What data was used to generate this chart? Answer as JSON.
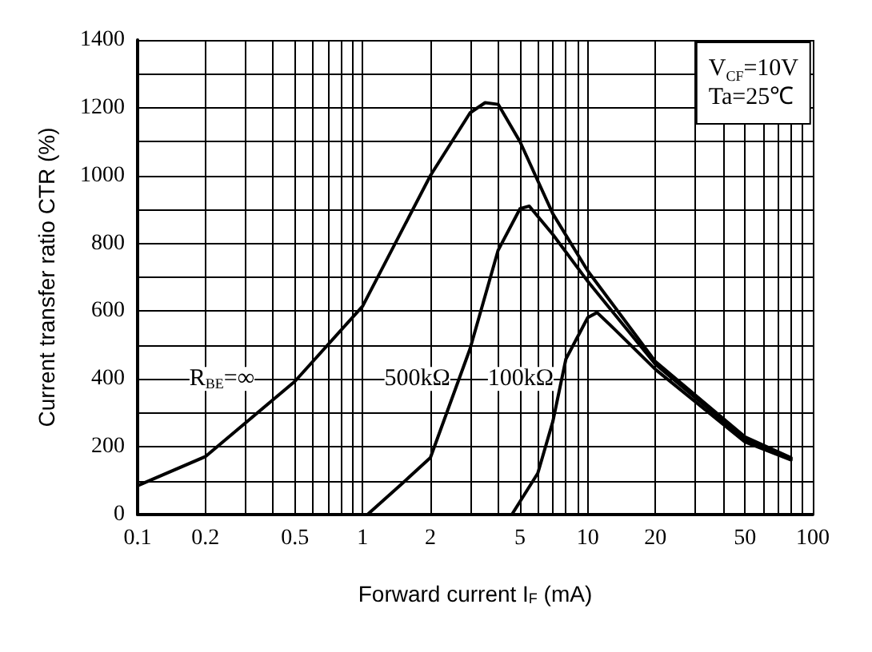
{
  "chart_data": {
    "type": "line",
    "xlabel": "Forward current I$_{F}$ (mA)",
    "ylabel": "Current transfer ratio CTR (%)",
    "annotations": [
      "V$_{CF}$=10V",
      "Ta=25℃"
    ],
    "series": [
      {
        "name": "R$_{BE}$=∞",
        "color": "#000000",
        "x": [
          0.1,
          0.2,
          0.5,
          1,
          2,
          3,
          3.5,
          4,
          5,
          7,
          10,
          20,
          50,
          80
        ],
        "values": [
          85,
          171,
          393,
          615,
          1000,
          1185,
          1215,
          1210,
          1100,
          887,
          719,
          451,
          229,
          168
        ]
      },
      {
        "name": "500kΩ",
        "color": "#000000",
        "x": [
          1.05,
          1.5,
          2,
          3,
          4,
          5,
          5.5,
          7,
          10,
          20,
          50,
          80
        ],
        "values": [
          0,
          92,
          168,
          489,
          780,
          902,
          910,
          826,
          688,
          443,
          222,
          165
        ]
      },
      {
        "name": "100kΩ",
        "color": "#000000",
        "x": [
          4.6,
          6,
          7,
          8,
          10,
          11,
          13,
          20,
          50,
          80
        ],
        "values": [
          0,
          122,
          275,
          459,
          581,
          596,
          550,
          428,
          214,
          161
        ]
      }
    ],
    "log": "x",
    "xlim": [
      0.1,
      100
    ],
    "xticks": [
      0.1,
      0.2,
      {
        "value": 0.3,
        "label": null
      },
      {
        "value": 0.4,
        "label": null
      },
      0.5,
      {
        "value": 0.6,
        "label": null
      },
      {
        "value": 0.7,
        "label": null
      },
      {
        "value": 0.8,
        "label": null
      },
      {
        "value": 0.9,
        "label": null
      },
      1,
      2,
      {
        "value": 3,
        "label": null
      },
      {
        "value": 4,
        "label": null
      },
      5,
      {
        "value": 6,
        "label": null
      },
      {
        "value": 7,
        "label": null
      },
      {
        "value": 8,
        "label": null
      },
      {
        "value": 9,
        "label": null
      },
      10,
      20,
      {
        "value": 30,
        "label": null
      },
      {
        "value": 40,
        "label": null
      },
      50,
      {
        "value": 60,
        "label": null
      },
      {
        "value": 70,
        "label": null
      },
      {
        "value": 80,
        "label": null
      },
      {
        "value": 90,
        "label": null
      },
      100
    ],
    "ylim": [
      0,
      1400
    ],
    "yticks": [
      0,
      {
        "value": 100,
        "label": null
      },
      200,
      {
        "value": 300,
        "label": null
      },
      400,
      {
        "value": 500,
        "label": null
      },
      600,
      {
        "value": 700,
        "label": null
      },
      800,
      {
        "value": 900,
        "label": null
      },
      1000,
      {
        "value": 1100,
        "label": null
      },
      1200,
      {
        "value": 1300,
        "label": null
      },
      1400
    ],
    "grid": true,
    "legend": false,
    "marker": "none",
    "line_style": "solid"
  }
}
